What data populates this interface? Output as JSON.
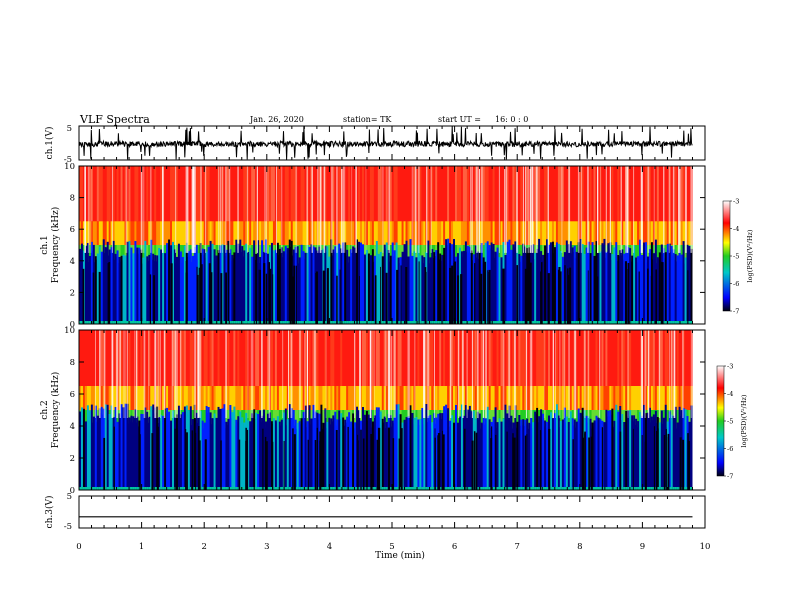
{
  "header": {
    "title": "VLF Spectra",
    "date": "Jan. 26, 2020",
    "station": "station= TK",
    "start_label": "start UT =",
    "start_time": "16: 0 : 0"
  },
  "chart_data": [
    {
      "type": "line",
      "panel": "ch1-waveform",
      "ylabel": "ch.1(V)",
      "yticks": [
        "5",
        "-5"
      ],
      "ylim": [
        -5,
        5
      ],
      "xlim": [
        0,
        10
      ],
      "note_values": "noisy waveform around -0.3 V with spikes to about ±5 V",
      "color": "#000000"
    },
    {
      "type": "heatmap",
      "panel": "ch1-spectrogram",
      "ylabel": "ch.1\nFrequency (kHz)",
      "ylabel_lines": [
        "ch.1",
        "Frequency (kHz)"
      ],
      "yticks": [
        "0",
        "2",
        "4",
        "6",
        "8",
        "10"
      ],
      "ylim": [
        0,
        10
      ],
      "xlim": [
        0,
        10
      ],
      "colorbar": {
        "label": "log(PSD)(V²/Hz)",
        "ticks": [
          "-3",
          "-4",
          "-5",
          "-6",
          "-7"
        ],
        "range": [
          -7,
          -3
        ]
      }
    },
    {
      "type": "heatmap",
      "panel": "ch2-spectrogram",
      "ylabel": "ch.2\nFrequency (kHz)",
      "ylabel_lines": [
        "ch.2",
        "Frequency (kHz)"
      ],
      "yticks": [
        "0",
        "2",
        "4",
        "6",
        "8",
        "10"
      ],
      "ylim": [
        0,
        10
      ],
      "xlim": [
        0,
        10
      ],
      "colorbar": {
        "label": "log(PSD)(V²/Hz)",
        "ticks": [
          "-3",
          "-4",
          "-5",
          "-6",
          "-7"
        ],
        "range": [
          -7,
          -3
        ]
      }
    },
    {
      "type": "line",
      "panel": "ch3-waveform",
      "ylabel": "ch.3(V)",
      "yticks": [
        "5",
        "-5"
      ],
      "ylim": [
        -5,
        5
      ],
      "xlim": [
        0,
        10
      ],
      "values": [
        -1.5,
        -1.5
      ],
      "x": [
        0,
        9.8
      ],
      "color": "#000000"
    }
  ],
  "xaxis": {
    "label": "Time (min)",
    "ticks": [
      "0",
      "1",
      "2",
      "3",
      "4",
      "5",
      "6",
      "7",
      "8",
      "9",
      "10"
    ]
  },
  "colors": {
    "low": "#000010",
    "blue": "#0000ff",
    "cyan": "#00c8c8",
    "green": "#22cc22",
    "yellow": "#ffff00",
    "red": "#ff0000",
    "high": "#ffffff"
  }
}
